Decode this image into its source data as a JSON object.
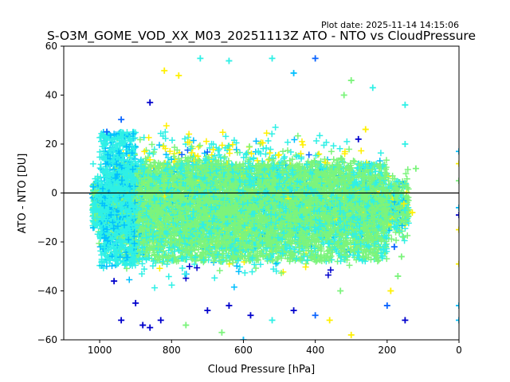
{
  "plot_date_label": "Plot date: 2025-11-14 14:15:06",
  "chart_data": {
    "type": "scatter",
    "title": "S-O3M_GOME_VOD_XX_M03_20251113Z ATO - NTO vs CloudPressure",
    "xlabel": "Cloud Pressure [hPa]",
    "ylabel": "ATO - NTO [DU]",
    "xlim": [
      1100,
      0
    ],
    "ylim": [
      -60,
      60
    ],
    "xticks": [
      1000,
      800,
      600,
      400,
      200,
      0
    ],
    "yticks": [
      60,
      40,
      20,
      0,
      -20,
      -40,
      -60
    ],
    "reference_line_y": 0,
    "marker": "plus",
    "colors": [
      "#0000cc",
      "#0a64ff",
      "#00bfff",
      "#2ff0e6",
      "#7cf47c",
      "#fff000"
    ],
    "density_clusters": [
      {
        "name": "core",
        "x_range": [
          180,
          960
        ],
        "y_range": [
          -30,
          20
        ]
      },
      {
        "name": "upper-envelope",
        "x_range": [
          300,
          900
        ],
        "y_range": [
          20,
          50
        ]
      },
      {
        "name": "lower-envelope",
        "x_range": [
          320,
          960
        ],
        "y_range": [
          -50,
          -30
        ]
      },
      {
        "name": "edge-at-zero-pressure",
        "x_range": [
          0,
          5
        ],
        "y_range": [
          -52,
          20
        ]
      }
    ],
    "sample_points": [
      {
        "x": 720,
        "y": 55,
        "c": 3
      },
      {
        "x": 520,
        "y": 55,
        "c": 3
      },
      {
        "x": 640,
        "y": 54,
        "c": 3
      },
      {
        "x": 400,
        "y": 55,
        "c": 1
      },
      {
        "x": 820,
        "y": 50,
        "c": 5
      },
      {
        "x": 780,
        "y": 48,
        "c": 5
      },
      {
        "x": 240,
        "y": 43,
        "c": 3
      },
      {
        "x": 980,
        "y": 25,
        "c": 1
      },
      {
        "x": 860,
        "y": 37,
        "c": 0
      },
      {
        "x": 150,
        "y": 36,
        "c": 3
      },
      {
        "x": 320,
        "y": 40,
        "c": 4
      },
      {
        "x": 300,
        "y": 46,
        "c": 4
      },
      {
        "x": 460,
        "y": 49,
        "c": 2
      },
      {
        "x": 940,
        "y": 30,
        "c": 1
      },
      {
        "x": 260,
        "y": 26,
        "c": 5
      },
      {
        "x": 280,
        "y": 22,
        "c": 0
      },
      {
        "x": 150,
        "y": 20,
        "c": 3
      },
      {
        "x": 120,
        "y": 10,
        "c": 4
      },
      {
        "x": 130,
        "y": -8,
        "c": 5
      },
      {
        "x": 155,
        "y": -18,
        "c": 4
      },
      {
        "x": 180,
        "y": -22,
        "c": 1
      },
      {
        "x": 160,
        "y": -26,
        "c": 4
      },
      {
        "x": 170,
        "y": -34,
        "c": 4
      },
      {
        "x": 190,
        "y": -40,
        "c": 5
      },
      {
        "x": 200,
        "y": -46,
        "c": 1
      },
      {
        "x": 150,
        "y": -52,
        "c": 0
      },
      {
        "x": 860,
        "y": -55,
        "c": 0
      },
      {
        "x": 880,
        "y": -54,
        "c": 0
      },
      {
        "x": 830,
        "y": -52,
        "c": 0
      },
      {
        "x": 940,
        "y": -52,
        "c": 0
      },
      {
        "x": 900,
        "y": -45,
        "c": 0
      },
      {
        "x": 960,
        "y": -36,
        "c": 0
      },
      {
        "x": 700,
        "y": -48,
        "c": 0
      },
      {
        "x": 640,
        "y": -46,
        "c": 0
      },
      {
        "x": 580,
        "y": -50,
        "c": 0
      },
      {
        "x": 460,
        "y": -48,
        "c": 0
      },
      {
        "x": 400,
        "y": -50,
        "c": 1
      },
      {
        "x": 330,
        "y": -40,
        "c": 4
      },
      {
        "x": 300,
        "y": -58,
        "c": 5
      },
      {
        "x": 600,
        "y": -60,
        "c": 2
      },
      {
        "x": 660,
        "y": -57,
        "c": 4
      },
      {
        "x": 360,
        "y": -52,
        "c": 5
      },
      {
        "x": 520,
        "y": -52,
        "c": 3
      },
      {
        "x": 760,
        "y": -54,
        "c": 4
      },
      {
        "x": 0,
        "y": 17,
        "c": 2
      },
      {
        "x": 0,
        "y": 12,
        "c": 5
      },
      {
        "x": 0,
        "y": 5,
        "c": 4
      },
      {
        "x": 0,
        "y": -6,
        "c": 2
      },
      {
        "x": 0,
        "y": -9,
        "c": 0
      },
      {
        "x": 0,
        "y": -15,
        "c": 5
      },
      {
        "x": 0,
        "y": -29,
        "c": 5
      },
      {
        "x": 0,
        "y": -46,
        "c": 2
      },
      {
        "x": 0,
        "y": -52,
        "c": 2
      }
    ]
  }
}
